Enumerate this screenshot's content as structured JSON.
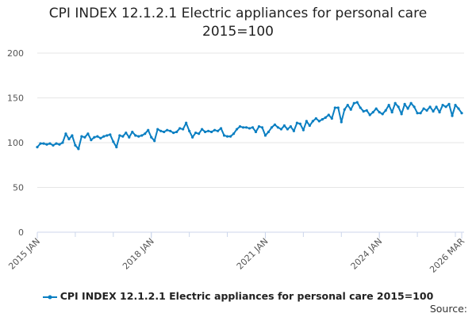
{
  "chart_data": {
    "type": "line",
    "title": "CPI INDEX 12.1.2.1 Electric appliances for personal care 2015=100",
    "title_lines": [
      "CPI INDEX 12.1.2.1 Electric appliances for personal care",
      "2015=100"
    ],
    "xlabel": "",
    "ylabel": "",
    "ylim": [
      0,
      200
    ],
    "yticks": [
      0,
      50,
      100,
      150,
      200
    ],
    "xtick_labels": [
      "2015 JAN",
      "2018 JAN",
      "2021 JAN",
      "2024 JAN",
      "2026 MAR"
    ],
    "xtick_month_index": [
      0,
      36,
      72,
      108,
      134
    ],
    "start": "2015 JAN",
    "end": "2026 MAR",
    "frequency": "monthly",
    "grid": true,
    "legend_position": "bottom",
    "color": "#0a7fc2",
    "series": [
      {
        "name": "CPI INDEX 12.1.2.1 Electric appliances for personal care 2015=100",
        "values": [
          95,
          99,
          99,
          98,
          99,
          97,
          99,
          98,
          100,
          110,
          104,
          108,
          97,
          93,
          107,
          106,
          110,
          103,
          106,
          107,
          105,
          107,
          108,
          109,
          101,
          95,
          108,
          107,
          111,
          106,
          112,
          108,
          107,
          108,
          110,
          114,
          106,
          102,
          115,
          113,
          112,
          114,
          113,
          111,
          112,
          116,
          115,
          122,
          113,
          106,
          111,
          110,
          115,
          112,
          113,
          112,
          114,
          113,
          116,
          108,
          107,
          107,
          110,
          115,
          118,
          117,
          117,
          116,
          117,
          112,
          118,
          117,
          108,
          112,
          117,
          120,
          117,
          115,
          119,
          115,
          118,
          113,
          122,
          121,
          114,
          124,
          119,
          124,
          127,
          124,
          126,
          128,
          131,
          127,
          139,
          139,
          123,
          137,
          142,
          137,
          144,
          145,
          139,
          135,
          136,
          131,
          134,
          138,
          134,
          132,
          136,
          142,
          134,
          144,
          140,
          132,
          143,
          138,
          144,
          140,
          133,
          133,
          138,
          136,
          140,
          135,
          140,
          134,
          142,
          140,
          143,
          130,
          142,
          138,
          133
        ]
      }
    ]
  },
  "source_label": "Source:"
}
